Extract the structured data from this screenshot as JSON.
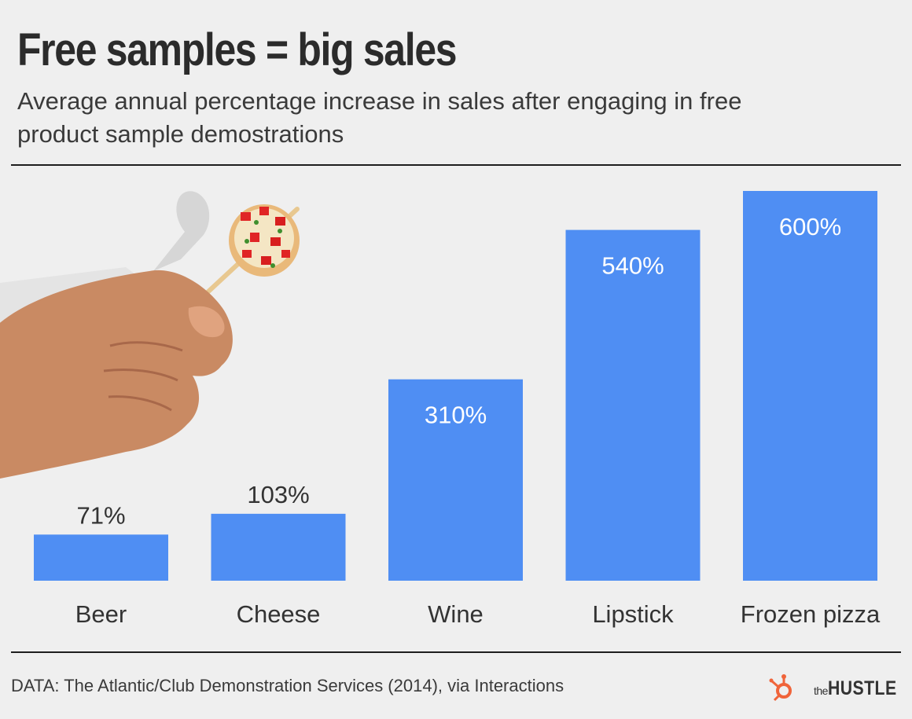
{
  "header": {
    "title": "Free samples = big sales",
    "subtitle": "Average annual percentage increase in sales after engaging in free product sample demostrations"
  },
  "chart_data": {
    "type": "bar",
    "categories": [
      "Beer",
      "Cheese",
      "Wine",
      "Lipstick",
      "Frozen pizza"
    ],
    "values": [
      71,
      103,
      310,
      540,
      600
    ],
    "value_labels": [
      "71%",
      "103%",
      "310%",
      "540%",
      "600%"
    ],
    "ylim": [
      0,
      600
    ],
    "xlabel": "",
    "ylabel": "",
    "grid": false,
    "bar_color": "#4f8ef3"
  },
  "footer": {
    "source": "DATA: The Atlantic/Club Demonstration Services (2014), via Interactions",
    "logo_the": "the",
    "logo_name": "HUSTLE",
    "logo_color": "#f0643a"
  },
  "illustration": {
    "icon": "hand-holding-pizza-sample-icon"
  }
}
